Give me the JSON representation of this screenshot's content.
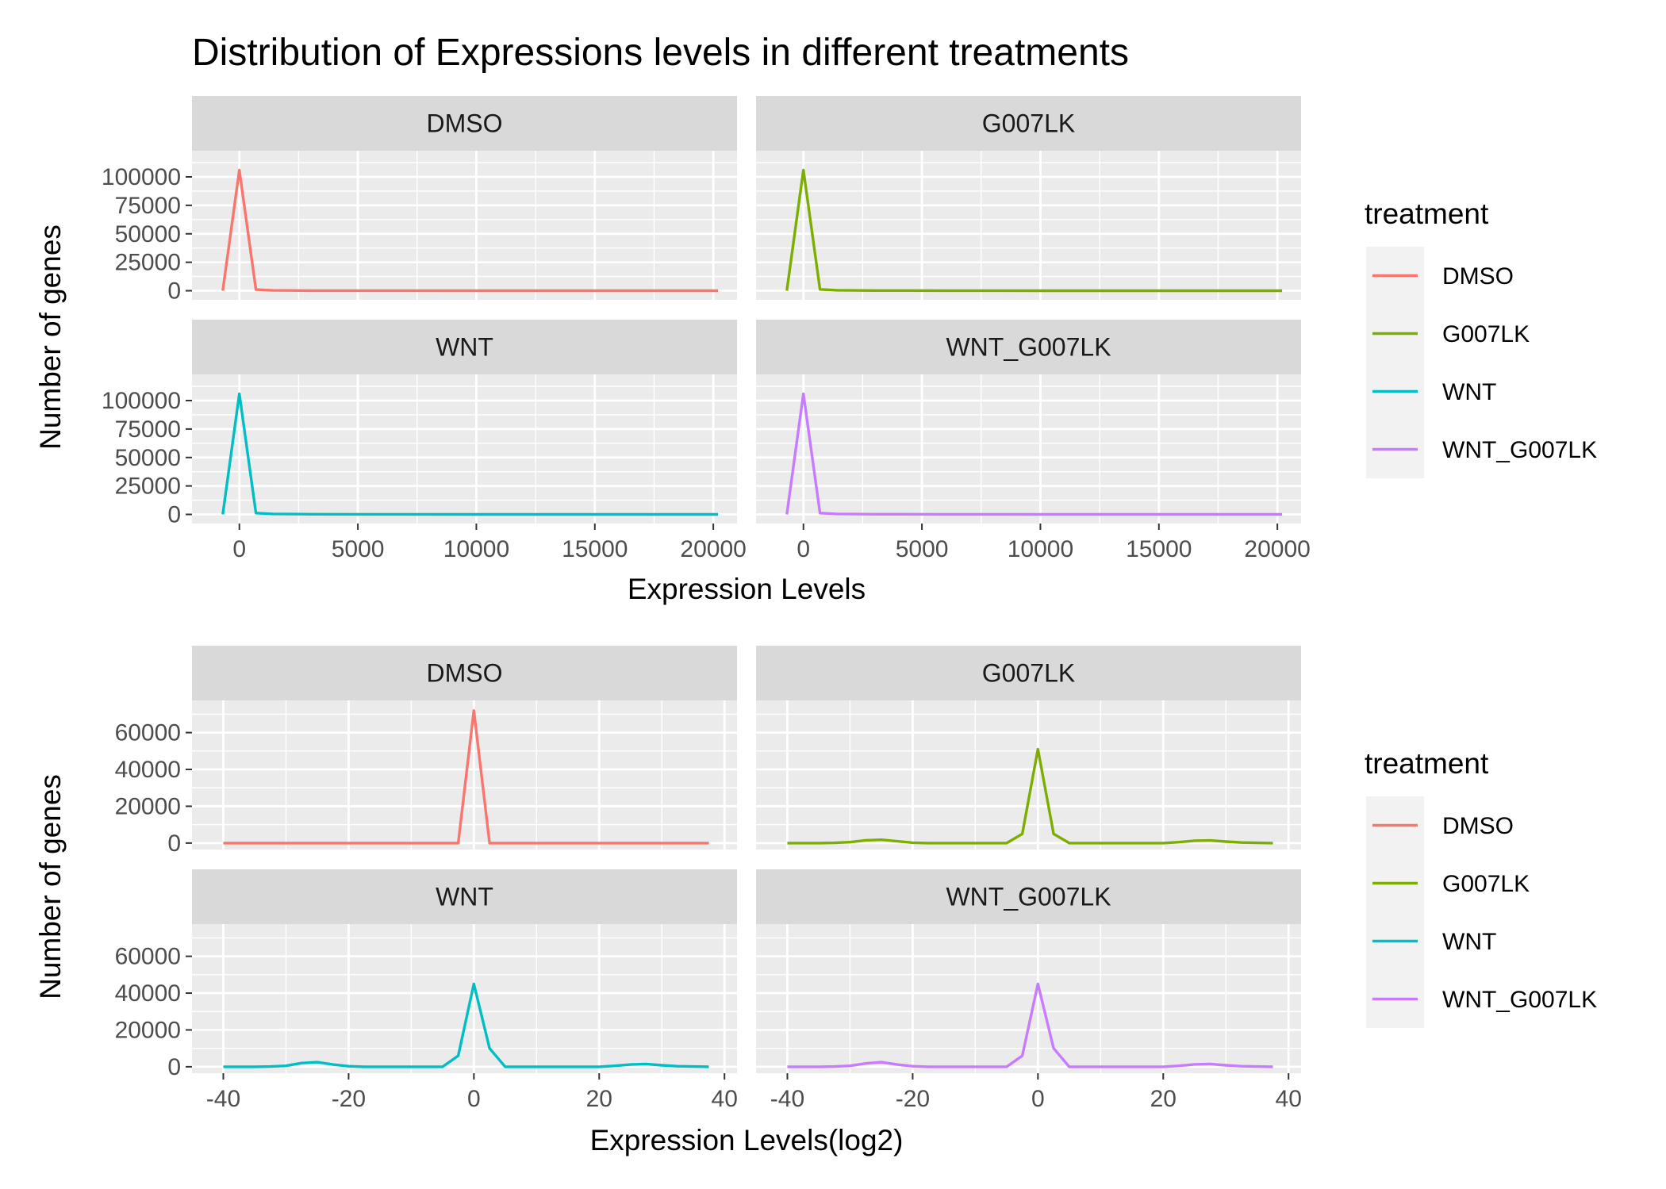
{
  "title": "Distribution of Expressions levels in different treatments",
  "colors": {
    "DMSO": "#F8766D",
    "G007LK": "#7CAE00",
    "WNT": "#00BFC4",
    "WNT_G007LK": "#C77CFF",
    "panel_bg": "#EBEBEB",
    "strip_bg": "#D9D9D9",
    "grid": "#FFFFFF",
    "legend_key_bg": "#F2F2F2"
  },
  "chart_data": [
    {
      "type": "line",
      "xlabel": "Expression Levels",
      "ylabel": "Number of genes",
      "xlim": [
        -2000,
        21000
      ],
      "ylim": [
        -8000,
        123000
      ],
      "x_ticks": [
        0,
        5000,
        10000,
        15000,
        20000
      ],
      "x_tick_labels": [
        "0",
        "5000",
        "10000",
        "15000",
        "20000"
      ],
      "y_ticks": [
        0,
        25000,
        50000,
        75000,
        100000
      ],
      "y_tick_labels": [
        "0",
        "25000",
        "50000",
        "75000",
        "100000"
      ],
      "legend": {
        "title": "treatment",
        "position": "right",
        "labels": [
          "DMSO",
          "G007LK",
          "WNT",
          "WNT_G007LK"
        ]
      },
      "facets": [
        {
          "name": "DMSO",
          "x": [
            -700,
            0,
            700,
            1400,
            3000,
            6000,
            10000,
            15000,
            20200
          ],
          "y": [
            0,
            106000,
            1000,
            300,
            100,
            50,
            20,
            10,
            0
          ]
        },
        {
          "name": "G007LK",
          "x": [
            -700,
            0,
            700,
            1400,
            3000,
            6000,
            10000,
            15000,
            20200
          ],
          "y": [
            0,
            106000,
            1200,
            400,
            150,
            60,
            30,
            10,
            0
          ]
        },
        {
          "name": "WNT",
          "x": [
            -700,
            0,
            700,
            1400,
            3000,
            6000,
            10000,
            15000,
            20200
          ],
          "y": [
            0,
            106000,
            1200,
            400,
            150,
            60,
            30,
            10,
            0
          ]
        },
        {
          "name": "WNT_G007LK",
          "x": [
            -700,
            0,
            700,
            1400,
            3000,
            6000,
            10000,
            15000,
            20200
          ],
          "y": [
            0,
            106000,
            1200,
            400,
            150,
            60,
            30,
            10,
            0
          ]
        }
      ]
    },
    {
      "type": "line",
      "xlabel": "Expression Levels(log2)",
      "ylabel": "Number of genes",
      "xlim": [
        -45,
        42
      ],
      "ylim": [
        -3500,
        77500
      ],
      "x_ticks": [
        -40,
        -20,
        0,
        20,
        40
      ],
      "x_tick_labels": [
        "-40",
        "-20",
        "0",
        "20",
        "40"
      ],
      "y_ticks": [
        0,
        20000,
        40000,
        60000
      ],
      "y_tick_labels": [
        "0",
        "20000",
        "40000",
        "60000"
      ],
      "legend": {
        "title": "treatment",
        "position": "right",
        "labels": [
          "DMSO",
          "G007LK",
          "WNT",
          "WNT_G007LK"
        ]
      },
      "facets": [
        {
          "name": "DMSO",
          "x": [
            -40,
            -2.5,
            0,
            2.5,
            37.5
          ],
          "y": [
            0,
            0,
            72000,
            0,
            0
          ]
        },
        {
          "name": "G007LK",
          "x": [
            -40,
            -37.5,
            -35,
            -32.5,
            -30,
            -27.5,
            -25,
            -22.5,
            -20,
            -17.5,
            -15,
            -12.5,
            -10,
            -7.5,
            -5,
            -2.5,
            0,
            2.5,
            5,
            7.5,
            10,
            12.5,
            15,
            17.5,
            20,
            22.5,
            25,
            27.5,
            30,
            32.5,
            35,
            37.5
          ],
          "y": [
            0,
            0,
            0,
            100,
            500,
            1500,
            1800,
            1000,
            200,
            0,
            0,
            0,
            0,
            0,
            0,
            5000,
            51000,
            5000,
            0,
            0,
            0,
            0,
            0,
            0,
            0,
            500,
            1300,
            1400,
            800,
            300,
            100,
            0
          ]
        },
        {
          "name": "WNT",
          "x": [
            -40,
            -37.5,
            -35,
            -32.5,
            -30,
            -27.5,
            -25,
            -22.5,
            -20,
            -17.5,
            -15,
            -12.5,
            -10,
            -7.5,
            -5,
            -2.5,
            0,
            2.5,
            5,
            7.5,
            10,
            12.5,
            15,
            17.5,
            20,
            22.5,
            25,
            27.5,
            30,
            32.5,
            35,
            37.5
          ],
          "y": [
            0,
            0,
            0,
            100,
            500,
            2000,
            2500,
            1200,
            300,
            0,
            0,
            0,
            0,
            0,
            0,
            6000,
            45000,
            10000,
            0,
            0,
            0,
            0,
            0,
            0,
            0,
            500,
            1200,
            1500,
            800,
            300,
            100,
            0
          ]
        },
        {
          "name": "WNT_G007LK",
          "x": [
            -40,
            -37.5,
            -35,
            -32.5,
            -30,
            -27.5,
            -25,
            -22.5,
            -20,
            -17.5,
            -15,
            -12.5,
            -10,
            -7.5,
            -5,
            -2.5,
            0,
            2.5,
            5,
            7.5,
            10,
            12.5,
            15,
            17.5,
            20,
            22.5,
            25,
            27.5,
            30,
            32.5,
            35,
            37.5
          ],
          "y": [
            0,
            0,
            0,
            100,
            500,
            1800,
            2500,
            1200,
            300,
            0,
            0,
            0,
            0,
            0,
            0,
            6000,
            45000,
            10000,
            0,
            0,
            0,
            0,
            0,
            0,
            0,
            500,
            1300,
            1500,
            800,
            300,
            100,
            0
          ]
        }
      ]
    }
  ]
}
